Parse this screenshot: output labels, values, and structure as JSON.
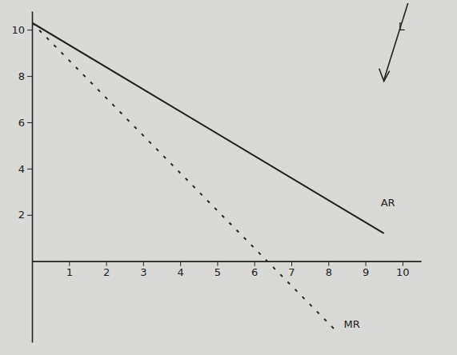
{
  "chart_data": {
    "type": "line",
    "xlim": [
      0,
      10.5
    ],
    "ylim": [
      -3.5,
      10.8
    ],
    "xticks": [
      1,
      2,
      3,
      4,
      5,
      6,
      7,
      8,
      9,
      10
    ],
    "yticks": [
      2,
      4,
      6,
      8,
      10
    ],
    "series": [
      {
        "name": "AR",
        "color": "#1e1e1e",
        "line_style": "solid",
        "x": [
          0,
          9.5
        ],
        "values": [
          10.3,
          1.2
        ]
      },
      {
        "name": "MR",
        "color": "#2a2a2a",
        "line_style": "dashed",
        "x": [
          0,
          8.2
        ],
        "values": [
          10.3,
          -3
        ]
      }
    ],
    "annotations": [
      {
        "text": "L",
        "x": 9.5,
        "y": 8.6
      }
    ]
  }
}
